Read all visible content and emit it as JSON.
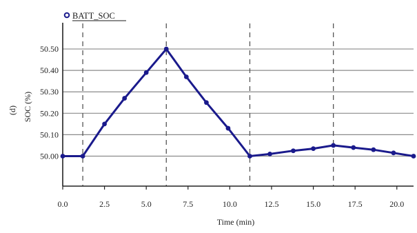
{
  "chart_data": {
    "type": "line",
    "panel_label": "(d)",
    "title": "",
    "xlabel": "Time (min)",
    "ylabel": "SOC (%)",
    "xlim": [
      0,
      21
    ],
    "ylim": [
      49.86,
      50.6
    ],
    "x_ticks": [
      0,
      2.5,
      5,
      7.5,
      10,
      12.5,
      15,
      17.5,
      20
    ],
    "x_tick_labels": [
      "0.0",
      "2.5",
      "5.0",
      "7.5",
      "10.0",
      "12.5",
      "15.0",
      "17.5",
      "20.0"
    ],
    "y_ticks": [
      50.0,
      50.1,
      50.2,
      50.3,
      50.4,
      50.5
    ],
    "y_tick_labels": [
      "50.00",
      "50.10",
      "50.20",
      "50.30",
      "50.40",
      "50.50"
    ],
    "grid": "horizontal",
    "legend_position": "top-left",
    "vertical_markers": [
      1.2,
      6.2,
      11.2,
      16.2
    ],
    "series": [
      {
        "name": "BATT_SOC",
        "color": "#1a1a8c",
        "x": [
          0,
          1.2,
          2.5,
          3.7,
          5.0,
          6.2,
          7.4,
          8.6,
          9.9,
          11.2,
          12.4,
          13.8,
          15.0,
          16.2,
          17.4,
          18.6,
          19.8,
          21.0
        ],
        "y": [
          50.0,
          50.0,
          50.15,
          50.27,
          50.39,
          50.5,
          50.37,
          50.25,
          50.13,
          50.0,
          50.01,
          50.025,
          50.035,
          50.05,
          50.04,
          50.03,
          50.015,
          50.0
        ]
      }
    ]
  }
}
